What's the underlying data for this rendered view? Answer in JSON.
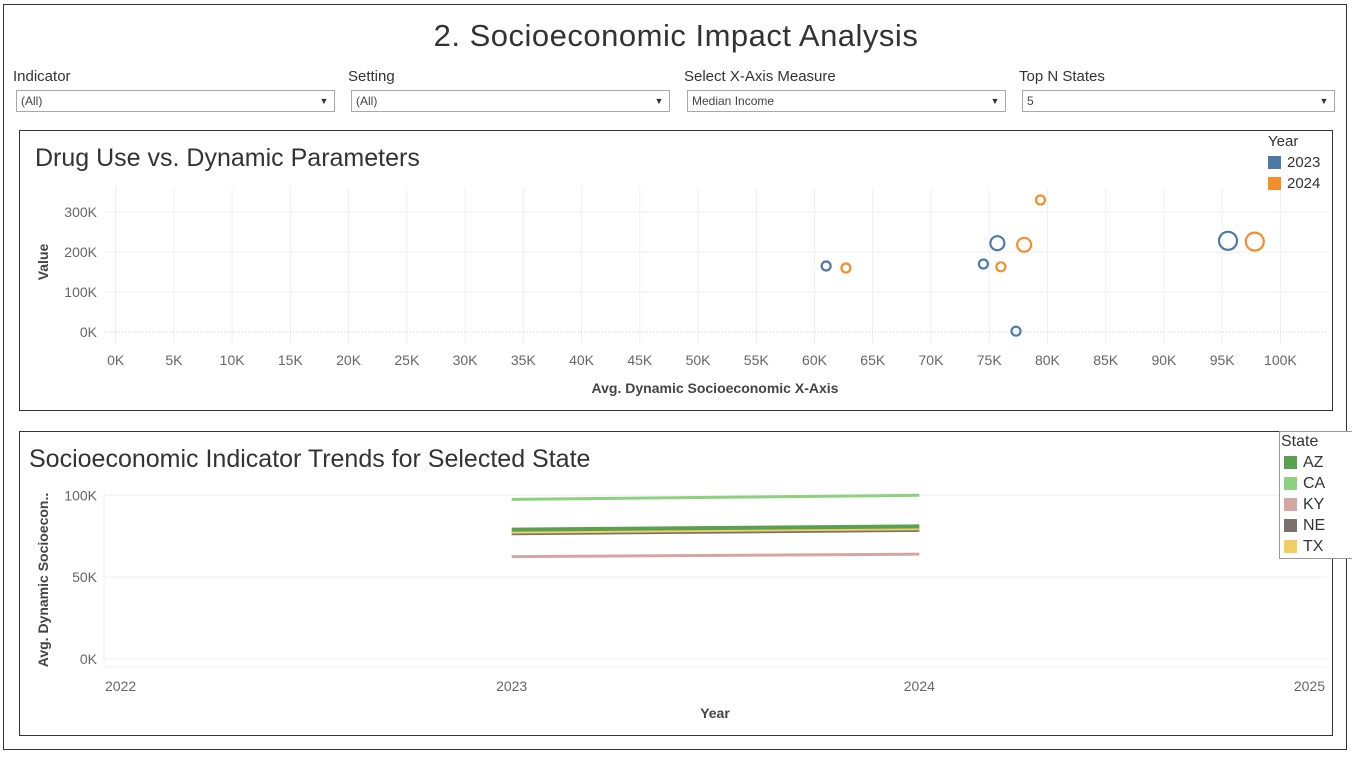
{
  "page": {
    "title": "2. Socioeconomic Impact Analysis"
  },
  "filters": [
    {
      "label": "Indicator",
      "value": "(All)"
    },
    {
      "label": "Setting",
      "value": "(All)"
    },
    {
      "label": "Select X-Axis Measure",
      "value": "Median Income"
    },
    {
      "label": "Top N States",
      "value": "5"
    }
  ],
  "icons": {
    "dropdown": "chevron-down-icon"
  },
  "chart_data": [
    {
      "type": "scatter",
      "title": "Drug Use vs. Dynamic Parameters",
      "xlabel": "Avg. Dynamic Socioeconomic X-Axis",
      "ylabel": "Value",
      "xlim": [
        -1000,
        104000
      ],
      "ylim": [
        -30000,
        360000
      ],
      "x_ticks": [
        "0K",
        "5K",
        "10K",
        "15K",
        "20K",
        "25K",
        "30K",
        "35K",
        "40K",
        "45K",
        "50K",
        "55K",
        "60K",
        "65K",
        "70K",
        "75K",
        "80K",
        "85K",
        "90K",
        "95K",
        "100K"
      ],
      "x_tick_values": [
        0,
        5000,
        10000,
        15000,
        20000,
        25000,
        30000,
        35000,
        40000,
        45000,
        50000,
        55000,
        60000,
        65000,
        70000,
        75000,
        80000,
        85000,
        90000,
        95000,
        100000
      ],
      "y_ticks": [
        "0K",
        "100K",
        "200K",
        "300K"
      ],
      "y_tick_values": [
        0,
        100000,
        200000,
        300000
      ],
      "grid": true,
      "legend": {
        "title": "Year",
        "placement": "top-right"
      },
      "series": [
        {
          "name": "2023",
          "color": "#4e79a7",
          "points": [
            {
              "x": 61000,
              "y": 165000,
              "size": "small"
            },
            {
              "x": 74500,
              "y": 170000,
              "size": "small"
            },
            {
              "x": 75700,
              "y": 222000,
              "size": "medium"
            },
            {
              "x": 77300,
              "y": 2000,
              "size": "small"
            },
            {
              "x": 95500,
              "y": 228000,
              "size": "large"
            }
          ]
        },
        {
          "name": "2024",
          "color": "#f28e2b",
          "points": [
            {
              "x": 62700,
              "y": 160000,
              "size": "small"
            },
            {
              "x": 76000,
              "y": 163000,
              "size": "small"
            },
            {
              "x": 78000,
              "y": 218000,
              "size": "medium"
            },
            {
              "x": 79400,
              "y": 330000,
              "size": "small"
            },
            {
              "x": 97800,
              "y": 226000,
              "size": "large"
            }
          ]
        }
      ]
    },
    {
      "type": "line",
      "title": "Socioeconomic Indicator Trends for Selected State",
      "xlabel": "Year",
      "ylabel": "Avg. Dynamic Socioecon..",
      "xlim": [
        2022,
        2025
      ],
      "ylim": [
        -5000,
        102000
      ],
      "x_ticks": [
        "2022",
        "2023",
        "2024",
        "2025"
      ],
      "x_tick_values": [
        2022,
        2023,
        2024,
        2025
      ],
      "y_ticks": [
        "0K",
        "50K",
        "100K"
      ],
      "y_tick_values": [
        0,
        50000,
        100000
      ],
      "grid": true,
      "legend": {
        "title": "State",
        "placement": "right"
      },
      "x": [
        2023,
        2024
      ],
      "series": [
        {
          "name": "AZ",
          "color": "#59a14f",
          "values": [
            79000,
            81000
          ],
          "width": 4
        },
        {
          "name": "CA",
          "color": "#8cd17d",
          "values": [
            97500,
            100000
          ],
          "width": 3
        },
        {
          "name": "KY",
          "color": "#d4a6a0",
          "values": [
            62500,
            64000
          ],
          "width": 3
        },
        {
          "name": "NE",
          "color": "#79706e",
          "values": [
            76500,
            78500
          ],
          "width": 3
        },
        {
          "name": "TX",
          "color": "#f1ce63",
          "values": [
            77500,
            79500
          ],
          "width": 3
        }
      ]
    }
  ]
}
